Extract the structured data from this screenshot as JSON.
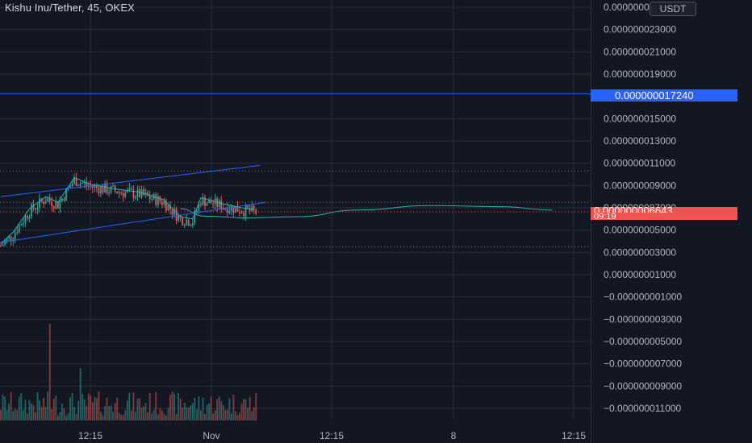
{
  "header": {
    "title": "Kishu Inu/Tether, 45, OKEX",
    "currency_label": "USDT"
  },
  "colors": {
    "background": "#131722",
    "grid": "#2a2e39",
    "text": "#b2b5be",
    "candle_up": "#26a69a",
    "candle_down": "#ef5350",
    "trend_line": "#2962ff",
    "forecast_line": "#22b5b0",
    "horizontal_line": "#2962ff"
  },
  "price_tags": {
    "horizontal_line_value": "0.000000017240",
    "last_price_value": "0.000000006643",
    "countdown": "09:19"
  },
  "chart_data": {
    "type": "candlestick",
    "title": "Kishu Inu/Tether, 45, OKEX",
    "y_tick_labels": [
      "0.000000025000",
      "0.000000023000",
      "0.000000021000",
      "0.000000019000",
      "0.000000015000",
      "0.000000013000",
      "0.000000011000",
      "0.000000009000",
      "0.000000007000",
      "0.000000005000",
      "0.000000003000",
      "0.000000001000",
      "−0.000000001000",
      "−0.000000003000",
      "−0.000000005000",
      "−0.000000007000",
      "−0.000000009000",
      "−0.000000011000"
    ],
    "y_tick_values": [
      2.5e-08,
      2.3e-08,
      2.1e-08,
      1.9e-08,
      1.5e-08,
      1.3e-08,
      1.1e-08,
      9e-09,
      7e-09,
      5e-09,
      3e-09,
      1e-09,
      -1e-09,
      -3e-09,
      -5e-09,
      -7e-09,
      -9e-09,
      -1.1e-08
    ],
    "x_tick_labels": [
      "12:15",
      "Nov",
      "12:15",
      "8",
      "12:15"
    ],
    "horizontal_line": 1.724e-08,
    "last_price": 6.643e-09,
    "dotted_levels": [
      1.03e-08,
      7.5e-09,
      3.5e-09
    ],
    "grid": true,
    "candles": {
      "start_price": 3.6e-09,
      "count": 126,
      "path_waypoints": [
        [
          0,
          3.6e-09
        ],
        [
          6,
          4.6e-09
        ],
        [
          14,
          6.7e-09
        ],
        [
          22,
          7.8e-09
        ],
        [
          28,
          7.3e-09
        ],
        [
          36,
          9.5e-09
        ],
        [
          44,
          8.9e-09
        ],
        [
          56,
          8.5e-09
        ],
        [
          68,
          8.2e-09
        ],
        [
          80,
          7.5e-09
        ],
        [
          88,
          6e-09
        ],
        [
          94,
          5.8e-09
        ],
        [
          98,
          7.7e-09
        ],
        [
          108,
          7.2e-09
        ],
        [
          118,
          6.8e-09
        ],
        [
          125,
          6.6e-09
        ]
      ]
    },
    "trend_lines": [
      {
        "from": [
          0,
          8e-09
        ],
        "to": [
          127,
          1.08e-08
        ]
      },
      {
        "from": [
          0,
          3.9e-09
        ],
        "to": [
          130,
          7.5e-09
        ]
      }
    ],
    "forecast_curve": [
      [
        88,
        6.9e-09
      ],
      [
        100,
        6.25e-09
      ],
      [
        120,
        6.1e-09
      ],
      [
        145,
        6.2e-09
      ],
      [
        175,
        6.8e-09
      ],
      [
        210,
        7.2e-09
      ],
      [
        245,
        7.1e-09
      ],
      [
        270,
        6.8e-09
      ]
    ]
  }
}
